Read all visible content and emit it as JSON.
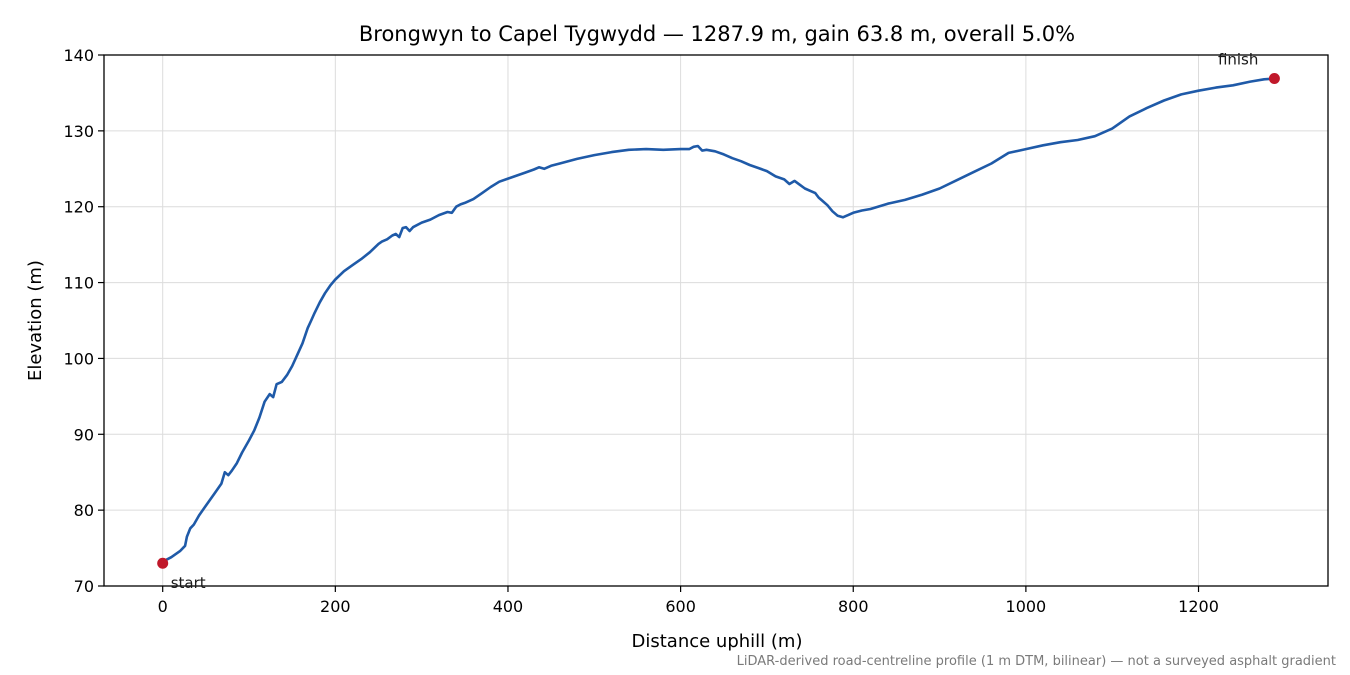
{
  "chart_data": {
    "type": "line",
    "title": "Brongwyn to Capel Tygwydd — 1287.9 m, gain 63.8 m, overall 5.0%",
    "xlabel": "Distance uphill (m)",
    "ylabel": "Elevation (m)",
    "xlim": [
      -68,
      1350
    ],
    "ylim": [
      70,
      140
    ],
    "xticks": [
      0,
      200,
      400,
      600,
      800,
      1000,
      1200
    ],
    "yticks": [
      70,
      80,
      90,
      100,
      110,
      120,
      130,
      140
    ],
    "grid": true,
    "line_color": "#1f5aa8",
    "marker_color": "#c0182a",
    "series": [
      {
        "x": [
          0,
          10,
          20,
          26,
          28,
          32,
          36,
          42,
          50,
          60,
          68,
          72,
          76,
          80,
          86,
          92,
          100,
          106,
          112,
          118,
          124,
          128,
          132,
          138,
          144,
          150,
          156,
          162,
          168,
          172,
          176,
          182,
          188,
          194,
          200,
          210,
          220,
          230,
          240,
          250,
          254,
          260,
          266,
          270,
          274,
          278,
          282,
          286,
          290,
          300,
          310,
          320,
          330,
          335,
          340,
          345,
          350,
          360,
          370,
          380,
          390,
          400,
          410,
          420,
          430,
          436,
          442,
          450,
          460,
          480,
          500,
          520,
          540,
          560,
          580,
          600,
          610,
          615,
          620,
          625,
          630,
          640,
          650,
          660,
          670,
          680,
          690,
          700,
          710,
          720,
          726,
          732,
          738,
          744,
          750,
          756,
          760,
          764,
          770,
          776,
          782,
          788,
          794,
          800,
          810,
          820,
          840,
          860,
          880,
          900,
          920,
          940,
          960,
          980,
          1000,
          1020,
          1040,
          1060,
          1080,
          1100,
          1120,
          1140,
          1160,
          1180,
          1200,
          1220,
          1240,
          1260,
          1276,
          1287.9
        ],
        "y": [
          73.2,
          73.8,
          74.6,
          75.3,
          76.5,
          77.6,
          78.1,
          79.3,
          80.6,
          82.2,
          83.5,
          85.0,
          84.6,
          85.2,
          86.2,
          87.6,
          89.2,
          90.5,
          92.2,
          94.3,
          95.3,
          94.9,
          96.6,
          96.9,
          97.8,
          99.0,
          100.5,
          102.0,
          104.0,
          105.0,
          106.0,
          107.4,
          108.6,
          109.6,
          110.4,
          111.5,
          112.3,
          113.1,
          114.0,
          115.1,
          115.4,
          115.7,
          116.2,
          116.4,
          116.0,
          117.2,
          117.3,
          116.8,
          117.3,
          117.9,
          118.3,
          118.9,
          119.3,
          119.2,
          120.0,
          120.3,
          120.5,
          121.0,
          121.8,
          122.6,
          123.3,
          123.7,
          124.1,
          124.5,
          124.9,
          125.2,
          125.0,
          125.4,
          125.7,
          126.3,
          126.8,
          127.2,
          127.5,
          127.6,
          127.5,
          127.6,
          127.6,
          127.9,
          128.0,
          127.4,
          127.5,
          127.3,
          126.9,
          126.4,
          126.0,
          125.5,
          125.1,
          124.7,
          124.0,
          123.6,
          123.0,
          123.4,
          122.9,
          122.4,
          122.1,
          121.8,
          121.2,
          120.8,
          120.2,
          119.4,
          118.8,
          118.6,
          118.9,
          119.2,
          119.5,
          119.7,
          120.4,
          120.9,
          121.6,
          122.4,
          123.5,
          124.6,
          125.7,
          127.1,
          127.6,
          128.1,
          128.5,
          128.8,
          129.3,
          130.3,
          131.9,
          133.0,
          134.0,
          134.8,
          135.3,
          135.7,
          136.0,
          136.5,
          136.8,
          136.9
        ]
      }
    ],
    "annotations": [
      {
        "text": "start",
        "x": 0,
        "y": 73.0
      },
      {
        "text": "finish",
        "x": 1287.9,
        "y": 136.9
      }
    ],
    "footnote": "LiDAR-derived road-centreline profile (1 m DTM, bilinear) — not a surveyed asphalt gradient"
  }
}
